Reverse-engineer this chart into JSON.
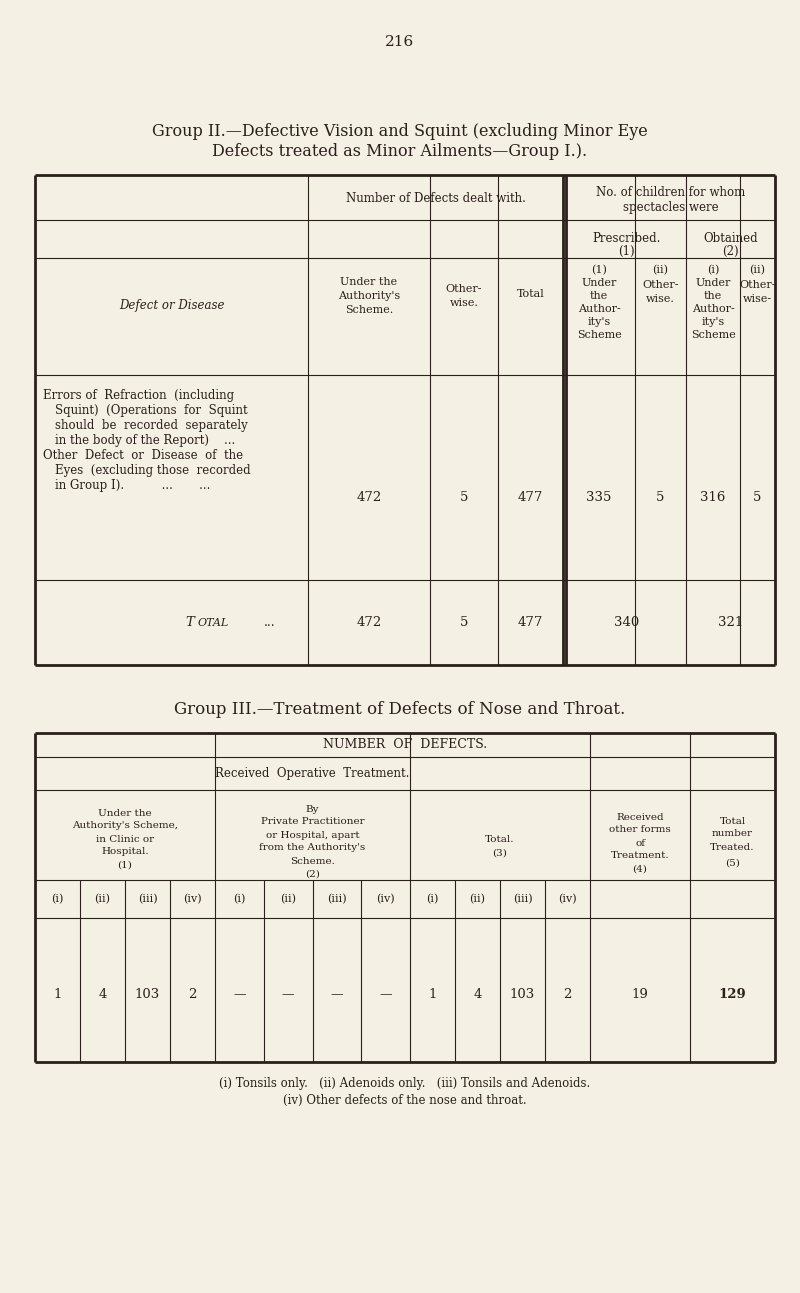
{
  "page_number": "216",
  "bg_color": "#f5f0e4",
  "text_color": "#2a1f1a",
  "group2_title_line1": "Group II.—Defective Vision and Squint (excluding Minor Eye",
  "group2_title_line2": "Defects treated as Minor Ailments—Group I.).",
  "group3_title": "Group III.—Treatment of Defects of Nose and Throat.",
  "footnote_line1": "(i) Tonsils only.   (ii) Adenoids only.   (iii) Tonsils and Adenoids.",
  "footnote_line2": "(iv) Other defects of the nose and throat."
}
